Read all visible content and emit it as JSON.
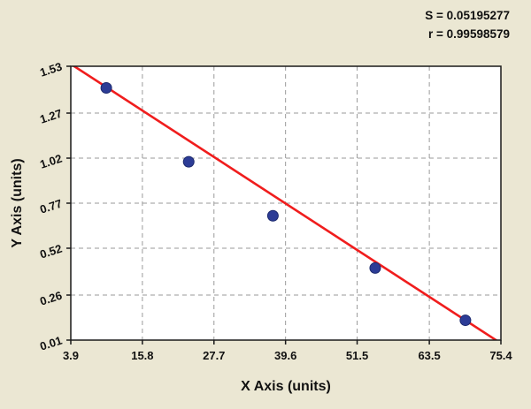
{
  "stats": {
    "s_label": "S = 0.05195277",
    "r_label": "r = 0.99598579"
  },
  "chart_data": {
    "type": "scatter",
    "title": "",
    "xlabel": "X Axis (units)",
    "ylabel": "Y Axis (units)",
    "xlim": [
      3.9,
      75.4
    ],
    "ylim": [
      0.01,
      1.53
    ],
    "x_ticks": [
      "3.9",
      "15.8",
      "27.7",
      "39.6",
      "51.5",
      "63.5",
      "75.4"
    ],
    "y_ticks": [
      "0.01",
      "0.26",
      "0.52",
      "0.77",
      "1.02",
      "1.27",
      "1.53"
    ],
    "grid": true,
    "legend": "none",
    "points": [
      {
        "x": 9.8,
        "y": 1.41
      },
      {
        "x": 23.5,
        "y": 1.0
      },
      {
        "x": 37.5,
        "y": 0.7
      },
      {
        "x": 54.5,
        "y": 0.41
      },
      {
        "x": 69.5,
        "y": 0.12
      }
    ],
    "fit_line": {
      "slope": -0.02168,
      "intercept": 1.6268
    },
    "annotations": [
      "S = 0.05195277",
      "r = 0.99598579"
    ],
    "colors": {
      "background": "#ebe7d3",
      "plot_background": "#ffffff",
      "grid": "#9a9a9a",
      "border": "#1a1a1a",
      "line": "#f01d1d",
      "point_fill": "#2c3c96",
      "point_stroke": "#1c2a6e",
      "text": "#111111"
    }
  }
}
